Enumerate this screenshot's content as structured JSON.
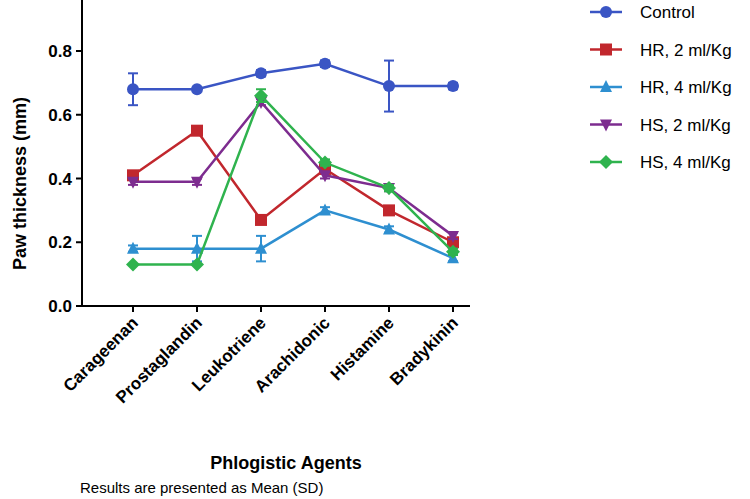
{
  "chart_data": {
    "type": "line",
    "x_label": "Phlogistic Agents",
    "y_label": "Paw thickness (mm)",
    "annotations": [
      "Results are presented as Mean (SD)"
    ],
    "categories": [
      "Carageenan",
      "Prostaglandin",
      "Leukotriene",
      "Arachidonic",
      "Histamine",
      "Bradykinin"
    ],
    "ylim": [
      0,
      0.96
    ],
    "yticks": [
      {
        "value": 0,
        "label": "0.0"
      },
      0.2,
      0.4,
      0.6,
      0.8
    ],
    "grid": false,
    "legend": "right",
    "series": [
      {
        "name": "Control",
        "color": "#3a55c4",
        "marker": "circle",
        "line_style": "solid",
        "values": [
          0.68,
          0.68,
          0.73,
          0.76,
          0.69,
          0.69
        ],
        "errors": [
          0.05,
          0.0,
          0.01,
          0.01,
          0.08,
          0.01
        ]
      },
      {
        "name": "HR, 2 ml/Kg",
        "color": "#c1272d",
        "marker": "square",
        "line_style": "solid",
        "values": [
          0.41,
          0.55,
          0.27,
          0.43,
          0.3,
          0.2
        ],
        "errors": [
          0.01,
          0.01,
          0.01,
          0.01,
          0.01,
          0.01
        ]
      },
      {
        "name": "HR, 4 ml/Kg",
        "color": "#2e8fd0",
        "marker": "triangle-up",
        "line_style": "solid",
        "values": [
          0.18,
          0.18,
          0.18,
          0.3,
          0.24,
          0.15
        ],
        "errors": [
          0.01,
          0.04,
          0.04,
          0.01,
          0.01,
          0.01
        ]
      },
      {
        "name": "HS, 2 ml/Kg",
        "color": "#7d2c8f",
        "marker": "triangle-down",
        "line_style": "solid",
        "values": [
          0.39,
          0.39,
          0.64,
          0.41,
          0.37,
          0.22
        ],
        "errors": [
          0.01,
          0.01,
          0.01,
          0.01,
          0.01,
          0.01
        ]
      },
      {
        "name": "HS, 4 ml/Kg",
        "color": "#2fb34e",
        "marker": "diamond",
        "line_style": "solid",
        "values": [
          0.13,
          0.13,
          0.66,
          0.45,
          0.37,
          0.17
        ],
        "errors": [
          0.0,
          0.0,
          0.02,
          0.01,
          0.01,
          0.01
        ]
      }
    ]
  }
}
